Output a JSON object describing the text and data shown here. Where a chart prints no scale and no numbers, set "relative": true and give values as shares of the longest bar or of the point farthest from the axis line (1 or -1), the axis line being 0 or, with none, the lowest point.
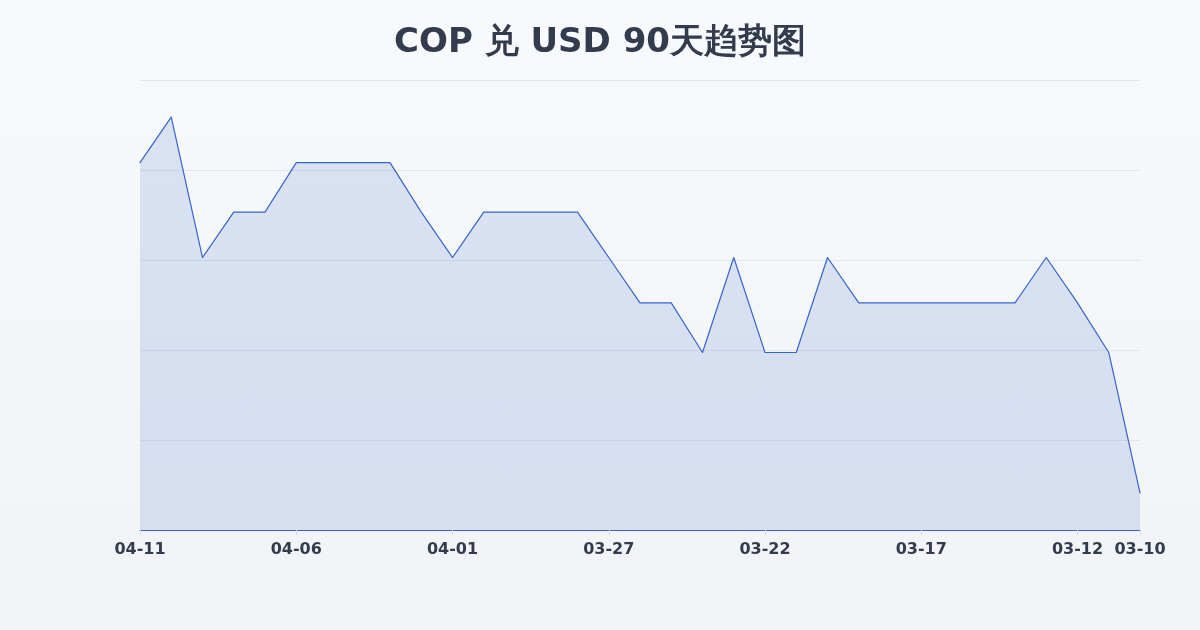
{
  "chart_data": {
    "type": "area",
    "title": "COP 兑 USD 90天趋势图",
    "categories": [
      "04-11",
      null,
      null,
      null,
      null,
      "04-06",
      null,
      null,
      null,
      null,
      "04-01",
      null,
      null,
      null,
      null,
      "03-27",
      null,
      null,
      null,
      null,
      "03-22",
      null,
      null,
      null,
      null,
      "03-17",
      null,
      null,
      null,
      null,
      "03-12",
      null,
      "03-10"
    ],
    "values": [
      0.89,
      1,
      0.66,
      0.77,
      0.77,
      0.89,
      0.89,
      0.89,
      0.89,
      0.77,
      0.66,
      0.77,
      0.77,
      0.77,
      0.77,
      0.66,
      0.55,
      0.55,
      0.43,
      0.66,
      0.43,
      0.43,
      0.66,
      0.55,
      0.55,
      0.55,
      0.55,
      0.55,
      0.55,
      0.66,
      0.55,
      0.43,
      0.09
    ],
    "color": "#3366cc",
    "relative": true,
    "grid": "y",
    "marker": "none",
    "line_style": "solid"
  }
}
